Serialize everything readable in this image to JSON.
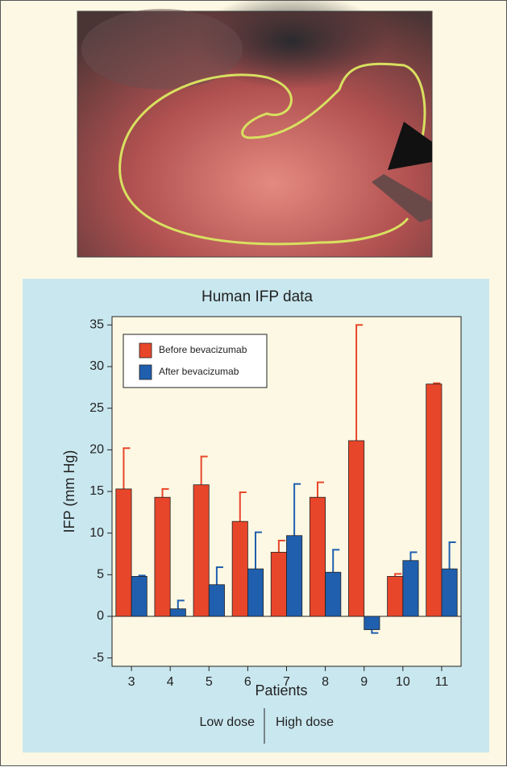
{
  "chart_data": {
    "type": "bar",
    "title": "Human IFP data",
    "x_label": "Patients",
    "y_label": "IFP (mm Hg)",
    "categories": [
      "3",
      "4",
      "5",
      "6",
      "7",
      "8",
      "9",
      "10",
      "11"
    ],
    "series": [
      {
        "name": "Before bevacizumab",
        "color": "#e8462a",
        "values": [
          15.3,
          14.3,
          15.8,
          11.4,
          7.7,
          14.3,
          21.1,
          4.8,
          27.9
        ],
        "errors": [
          4.9,
          1.0,
          3.4,
          3.5,
          1.4,
          1.8,
          13.9,
          0.3,
          0.1
        ]
      },
      {
        "name": "After bevacizumab",
        "color": "#1f5fae",
        "values": [
          4.8,
          0.9,
          3.8,
          5.7,
          9.7,
          5.3,
          -1.6,
          6.7,
          5.7
        ],
        "errors": [
          0.1,
          1.0,
          2.1,
          4.4,
          6.2,
          2.7,
          0.4,
          1.0,
          3.2
        ]
      }
    ],
    "ylim": [
      -6,
      36
    ],
    "yticks": [
      -5,
      0,
      5,
      10,
      15,
      20,
      25,
      30,
      35
    ],
    "grid": false,
    "legend": "upper left",
    "dose_labels": [
      "Low dose",
      "High dose"
    ]
  }
}
